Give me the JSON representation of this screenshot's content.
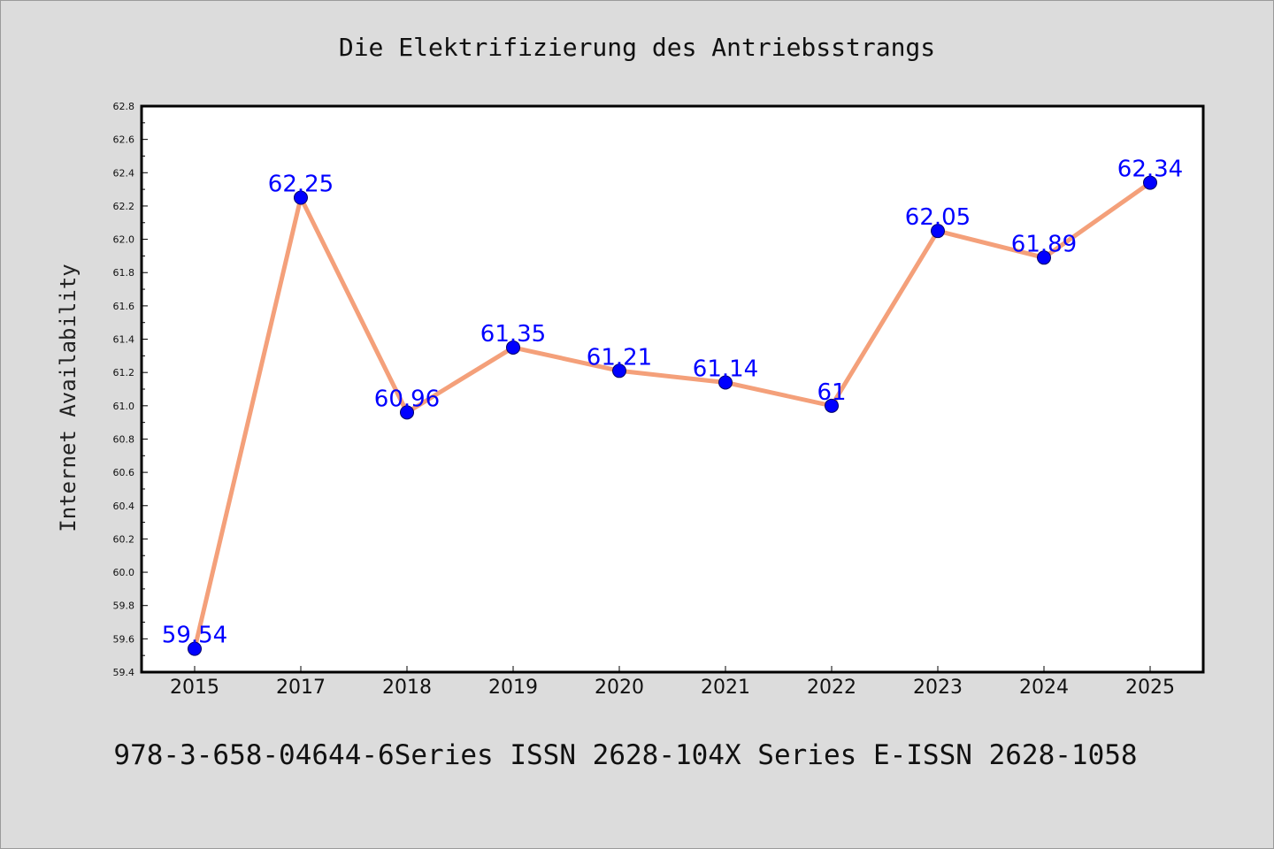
{
  "chart_data": {
    "type": "line",
    "title": "Die Elektrifizierung des Antriebsstrangs",
    "xlabel": "",
    "ylabel": "Internet Availability",
    "categories": [
      "2015",
      "2017",
      "2018",
      "2019",
      "2020",
      "2021",
      "2022",
      "2023",
      "2024",
      "2025"
    ],
    "series": [
      {
        "values": [
          59.54,
          62.25,
          60.96,
          61.35,
          61.21,
          61.14,
          61.0,
          62.05,
          61.89,
          62.34
        ],
        "data_labels": [
          "59.54",
          "62.25",
          "60.96",
          "61.35",
          "61.21",
          "61.14",
          "61",
          "62.05",
          "61.89",
          "62.34"
        ]
      }
    ],
    "ylim": [
      59.4,
      62.8
    ],
    "yticks": [
      "59.4",
      "59.6",
      "59.8",
      "60.0",
      "60.2",
      "60.4",
      "60.6",
      "60.8",
      "61.0",
      "61.2",
      "61.4",
      "61.6",
      "61.8",
      "62.0",
      "62.2",
      "62.4",
      "62.6",
      "62.8"
    ],
    "grid": false,
    "legend": "none",
    "colors": {
      "line": "#f4a07a",
      "marker": "#0000ff",
      "data_label": "#0000ff",
      "background": "#dcdcdc",
      "plot_background": "#ffffff"
    },
    "footer": "978-3-658-04644-6Series ISSN 2628-104X Series E-ISSN 2628-1058"
  }
}
